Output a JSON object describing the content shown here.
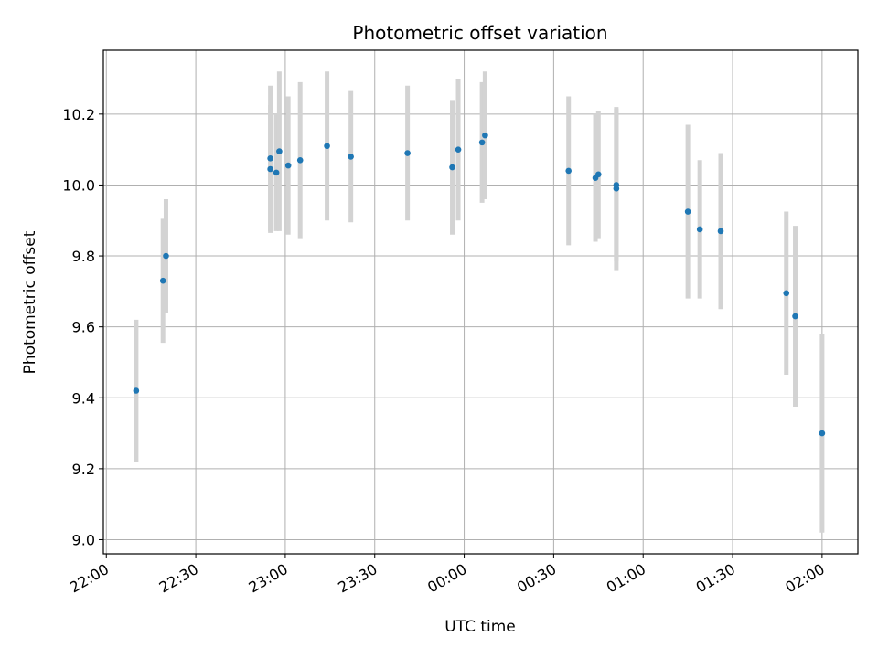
{
  "chart_data": {
    "type": "scatter",
    "title": "Photometric offset variation",
    "xlabel": "UTC time",
    "ylabel": "Photometric offset",
    "x_ticks": [
      "22:00",
      "22:30",
      "23:00",
      "23:30",
      "00:00",
      "00:30",
      "01:00",
      "01:30",
      "02:00"
    ],
    "y_ticks": [
      "9.0",
      "9.2",
      "9.4",
      "9.6",
      "9.8",
      "10.0",
      "10.2"
    ],
    "xlim": [
      "21:59",
      "02:12"
    ],
    "ylim": [
      8.96,
      10.38
    ],
    "grid": true,
    "colors": {
      "points": "#1f77b4",
      "errorbars": "#d3d3d3",
      "grid": "#b0b0b0"
    },
    "points": [
      {
        "t": "22:10",
        "y": 9.42,
        "err": 0.2
      },
      {
        "t": "22:19",
        "y": 9.73,
        "err": 0.175
      },
      {
        "t": "22:20",
        "y": 9.8,
        "err": 0.16
      },
      {
        "t": "22:55",
        "y": 10.075,
        "err": 0.205
      },
      {
        "t": "22:55",
        "y": 10.045,
        "err": 0.18
      },
      {
        "t": "22:57",
        "y": 10.035,
        "err": 0.165
      },
      {
        "t": "22:58",
        "y": 10.095,
        "err": 0.225
      },
      {
        "t": "23:01",
        "y": 10.055,
        "err": 0.195
      },
      {
        "t": "23:05",
        "y": 10.07,
        "err": 0.22
      },
      {
        "t": "23:14",
        "y": 10.11,
        "err": 0.21
      },
      {
        "t": "23:22",
        "y": 10.08,
        "err": 0.185
      },
      {
        "t": "23:41",
        "y": 10.09,
        "err": 0.19
      },
      {
        "t": "23:56",
        "y": 10.05,
        "err": 0.19
      },
      {
        "t": "23:58",
        "y": 10.1,
        "err": 0.2
      },
      {
        "t": "00:06",
        "y": 10.12,
        "err": 0.17
      },
      {
        "t": "00:07",
        "y": 10.14,
        "err": 0.18
      },
      {
        "t": "00:35",
        "y": 10.04,
        "err": 0.21
      },
      {
        "t": "00:44",
        "y": 10.02,
        "err": 0.18
      },
      {
        "t": "00:45",
        "y": 10.03,
        "err": 0.18
      },
      {
        "t": "00:51",
        "y": 9.99,
        "err": 0.23
      },
      {
        "t": "00:51",
        "y": 10.0,
        "err": 0.215
      },
      {
        "t": "01:15",
        "y": 9.925,
        "err": 0.245
      },
      {
        "t": "01:19",
        "y": 9.875,
        "err": 0.195
      },
      {
        "t": "01:26",
        "y": 9.87,
        "err": 0.22
      },
      {
        "t": "01:48",
        "y": 9.695,
        "err": 0.23
      },
      {
        "t": "01:51",
        "y": 9.63,
        "err": 0.255
      },
      {
        "t": "02:00",
        "y": 9.3,
        "err": 0.28
      }
    ]
  }
}
